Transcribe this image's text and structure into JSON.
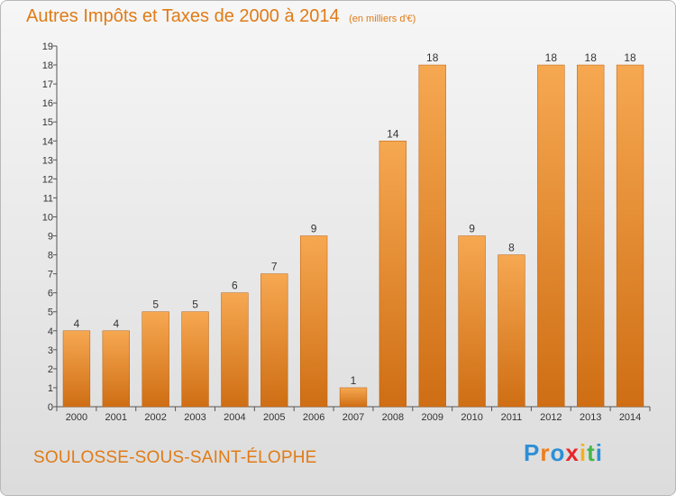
{
  "title": "Autres Impôts et Taxes de 2000 à 2014",
  "subtitle": "(en milliers d'€)",
  "commune": "SOULOSSE-SOUS-SAINT-ÉLOPHE",
  "logo": {
    "text": "Proxiti",
    "colors": [
      "#2d8fd5",
      "#f07d1a",
      "#2d8fd5",
      "#e8262a",
      "#f2b21c",
      "#45b749",
      "#2d8fd5"
    ]
  },
  "colors": {
    "bar_light": "#f6a851",
    "bar_dark": "#cf6e14",
    "accent": "#e07b16"
  },
  "chart_data": {
    "type": "bar",
    "title": "Autres Impôts et Taxes de 2000 à 2014",
    "categories": [
      "2000",
      "2001",
      "2002",
      "2003",
      "2004",
      "2005",
      "2006",
      "2007",
      "2008",
      "2009",
      "2010",
      "2011",
      "2012",
      "2013",
      "2014"
    ],
    "values": [
      4,
      4,
      5,
      5,
      6,
      7,
      9,
      1,
      14,
      18,
      9,
      8,
      18,
      18,
      18
    ],
    "ylim": [
      0,
      19
    ],
    "yticks": [
      0,
      1,
      2,
      3,
      4,
      5,
      6,
      7,
      8,
      9,
      10,
      11,
      12,
      13,
      14,
      15,
      16,
      17,
      18,
      19
    ],
    "grid": false,
    "data_labels": true
  }
}
